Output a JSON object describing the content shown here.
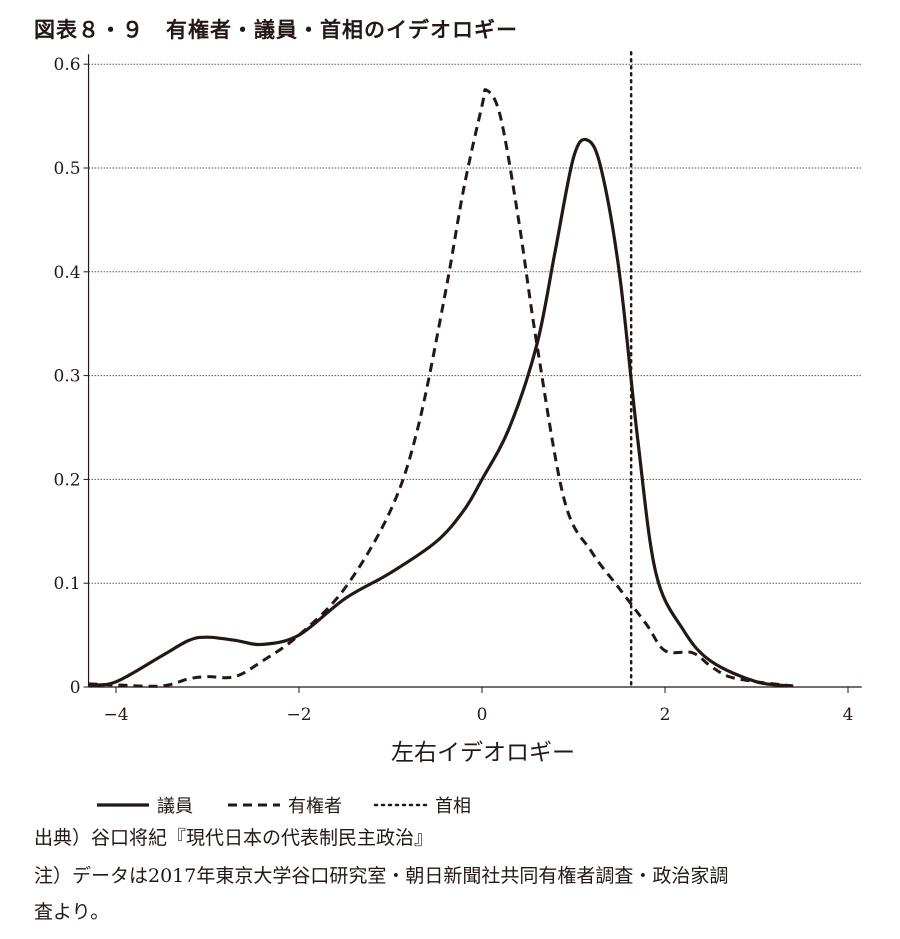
{
  "title": "図表８・９　有権者・議員・首相のイデオロギー",
  "chart_data": {
    "type": "line",
    "title": "図表８・９　有権者・議員・首相のイデオロギー",
    "xlabel": "左右イデオロギー",
    "ylabel": "",
    "xlim": [
      -4.3,
      4.15
    ],
    "ylim": [
      0,
      0.6
    ],
    "xticks": [
      -4,
      -2,
      0,
      2,
      4
    ],
    "xtick_labels": [
      "−4",
      "−2",
      "0",
      "2",
      "4"
    ],
    "yticks": [
      0,
      0.1,
      0.2,
      0.3,
      0.4,
      0.5,
      0.6
    ],
    "ytick_labels": [
      "0",
      "0.1",
      "0.2",
      "0.3",
      "0.4",
      "0.5",
      "0.6"
    ],
    "grid": "horizontal dotted",
    "legend_placement": "bottom",
    "series": [
      {
        "name": "議員",
        "style": "solid",
        "x": [
          -4.3,
          -4,
          -3.5,
          -3.2,
          -3.0,
          -2.7,
          -2.4,
          -2,
          -1.5,
          -1,
          -0.5,
          -0.2,
          0,
          0.3,
          0.6,
          0.8,
          1.0,
          1.15,
          1.3,
          1.5,
          1.7,
          1.9,
          2.2,
          2.5,
          3.0,
          3.4
        ],
        "y": [
          0.002,
          0.005,
          0.03,
          0.045,
          0.048,
          0.045,
          0.041,
          0.05,
          0.085,
          0.11,
          0.14,
          0.17,
          0.2,
          0.25,
          0.33,
          0.42,
          0.51,
          0.527,
          0.5,
          0.4,
          0.24,
          0.11,
          0.055,
          0.025,
          0.005,
          0.001
        ]
      },
      {
        "name": "有権者",
        "style": "dashed",
        "x": [
          -4.3,
          -4,
          -3.5,
          -3.2,
          -3.0,
          -2.7,
          -2.4,
          -2,
          -1.5,
          -1,
          -0.7,
          -0.4,
          -0.2,
          0,
          0.05,
          0.2,
          0.4,
          0.6,
          0.9,
          1.2,
          1.5,
          1.8,
          2.0,
          2.3,
          2.5,
          2.7,
          3.0,
          3.4
        ],
        "y": [
          0.003,
          0.002,
          0.001,
          0.008,
          0.01,
          0.01,
          0.025,
          0.05,
          0.095,
          0.17,
          0.25,
          0.38,
          0.48,
          0.56,
          0.575,
          0.55,
          0.45,
          0.33,
          0.18,
          0.13,
          0.095,
          0.06,
          0.035,
          0.033,
          0.02,
          0.01,
          0.005,
          0.001
        ]
      },
      {
        "name": "首相",
        "style": "dotted",
        "vline_x": 1.63
      }
    ]
  },
  "notes": {
    "source": "出典）谷口将紀『現代日本の代表制民主政治』",
    "note1": "注）データは2017年東京大学谷口研究室・朝日新聞社共同有権者調査・政治家調",
    "note2": "査より。"
  }
}
